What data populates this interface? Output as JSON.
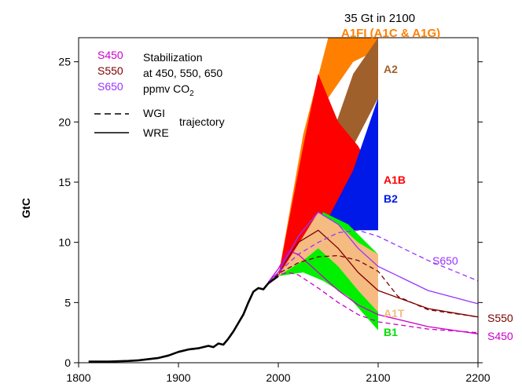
{
  "chart_data": {
    "type": "area",
    "title": "",
    "xlabel": "",
    "ylabel": "GtC",
    "xlim": [
      1800,
      2200
    ],
    "ylim": [
      0,
      27
    ],
    "x_ticks": [
      1800,
      1900,
      2000,
      2100,
      2200
    ],
    "y_ticks": [
      0,
      5,
      10,
      15,
      20,
      25
    ],
    "grid": false,
    "colors": {
      "A1FI": "#ff8000",
      "A2": "#a0602c",
      "A1B": "#ff0000",
      "B2": "#0018e8",
      "B1": "#00f000",
      "A1T": "#f5bb80",
      "S450": "#cc00cc",
      "S550": "#7b0000",
      "S650": "#9933ff",
      "historical": "#000000"
    },
    "annotations": {
      "top_note": "35 Gt in 2100",
      "top_label": "A1FI (A1C & A1G)"
    },
    "legend": {
      "s450": "S450",
      "s550": "S550",
      "s650": "S650",
      "stab_line1": "Stabilization",
      "stab_line2": "at 450, 550, 650",
      "stab_line3": "ppmv CO",
      "stab_sub": "2",
      "wgi": "WGI",
      "wre": "WRE",
      "trajectory": "trajectory"
    },
    "series": [
      {
        "name": "Historical",
        "type": "line",
        "x": [
          1810,
          1830,
          1850,
          1860,
          1870,
          1880,
          1890,
          1900,
          1910,
          1920,
          1930,
          1935,
          1940,
          1945,
          1950,
          1955,
          1960,
          1965,
          1970,
          1975,
          1980,
          1985,
          1990,
          2000
        ],
        "y": [
          0.1,
          0.1,
          0.15,
          0.2,
          0.3,
          0.4,
          0.6,
          0.9,
          1.1,
          1.2,
          1.4,
          1.3,
          1.6,
          1.5,
          2.0,
          2.6,
          3.3,
          4.0,
          5.0,
          5.9,
          6.2,
          6.1,
          6.6,
          7.2
        ]
      },
      {
        "name": "A1FI",
        "type": "band",
        "x": [
          2000,
          2025,
          2050,
          2075,
          2100
        ],
        "upper": [
          7.2,
          19.0,
          27.0,
          27.0,
          27.0
        ],
        "lower": [
          7.2,
          14.0,
          22.0,
          25.0,
          26.0
        ]
      },
      {
        "name": "A2",
        "type": "band",
        "x": [
          2000,
          2025,
          2050,
          2075,
          2100
        ],
        "upper": [
          7.2,
          10.0,
          18.0,
          24.0,
          27.0
        ],
        "lower": [
          7.2,
          9.0,
          13.0,
          18.0,
          22.0
        ]
      },
      {
        "name": "A1B",
        "type": "band",
        "x": [
          2000,
          2025,
          2040,
          2060,
          2080,
          2100
        ],
        "upper": [
          7.2,
          18.0,
          24.0,
          20.0,
          18.0,
          15.0
        ],
        "lower": [
          7.2,
          9.0,
          10.0,
          11.0,
          11.5,
          12.0
        ]
      },
      {
        "name": "B2",
        "type": "band",
        "x": [
          2000,
          2025,
          2050,
          2075,
          2100
        ],
        "upper": [
          7.2,
          9.0,
          12.0,
          16.0,
          22.0
        ],
        "lower": [
          7.2,
          8.5,
          10.5,
          11.0,
          11.0
        ]
      },
      {
        "name": "B1",
        "type": "band",
        "x": [
          2000,
          2025,
          2045,
          2070,
          2100
        ],
        "upper": [
          7.2,
          10.0,
          12.5,
          11.5,
          9.0
        ],
        "lower": [
          7.2,
          7.5,
          6.8,
          5.5,
          2.7
        ]
      },
      {
        "name": "A1T",
        "type": "band",
        "x": [
          2000,
          2025,
          2040,
          2060,
          2080,
          2100
        ],
        "upper": [
          7.2,
          10.5,
          12.5,
          11.5,
          10.0,
          9.0
        ],
        "lower": [
          7.2,
          8.5,
          9.5,
          8.0,
          6.0,
          4.2
        ]
      },
      {
        "name": "S450",
        "type": "lines",
        "wre": {
          "x": [
            1990,
            2000,
            2010,
            2020,
            2040,
            2060,
            2080,
            2100,
            2150,
            2200
          ],
          "y": [
            6.7,
            7.8,
            9.3,
            9.0,
            7.5,
            6.0,
            4.8,
            4.0,
            3.0,
            2.4
          ]
        },
        "wgi": {
          "x": [
            1990,
            2000,
            2010,
            2020,
            2040,
            2060,
            2080,
            2100,
            2150,
            2200
          ],
          "y": [
            6.7,
            7.3,
            7.5,
            7.3,
            6.2,
            5.0,
            4.0,
            3.4,
            2.8,
            2.5
          ]
        }
      },
      {
        "name": "S550",
        "type": "lines",
        "wre": {
          "x": [
            1990,
            2000,
            2020,
            2040,
            2060,
            2080,
            2100,
            2150,
            2200
          ],
          "y": [
            6.7,
            7.5,
            10.0,
            11.0,
            9.5,
            7.5,
            6.0,
            4.5,
            3.8
          ]
        },
        "wgi": {
          "x": [
            1990,
            2000,
            2020,
            2040,
            2060,
            2080,
            2100,
            2120,
            2150,
            2200
          ],
          "y": [
            6.7,
            7.4,
            8.3,
            8.8,
            8.9,
            8.5,
            7.6,
            5.5,
            4.4,
            3.8
          ]
        }
      },
      {
        "name": "S650",
        "type": "lines",
        "wre": {
          "x": [
            1990,
            2000,
            2020,
            2040,
            2060,
            2080,
            2100,
            2150,
            2200
          ],
          "y": [
            6.7,
            7.5,
            10.5,
            12.5,
            11.5,
            9.5,
            8.0,
            6.0,
            4.9
          ]
        },
        "wgi": {
          "x": [
            1990,
            2000,
            2020,
            2040,
            2060,
            2080,
            2100,
            2150,
            2200
          ],
          "y": [
            6.7,
            7.5,
            9.0,
            10.0,
            10.8,
            11.0,
            10.5,
            8.5,
            6.8
          ]
        }
      }
    ],
    "scenario_labels": [
      "A2",
      "A1B",
      "B2",
      "A1T",
      "B1"
    ],
    "stabilization_labels": [
      "S650",
      "S550",
      "S450"
    ]
  }
}
